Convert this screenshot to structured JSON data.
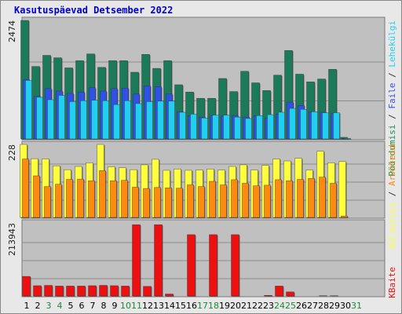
{
  "title": "Kasutuspäevad Detsember 2022",
  "colors": {
    "panel_bg": "#c0c0c0",
    "grid": "#8c8c8c",
    "kulastused": "#1a7a5a",
    "lehekulastused": "#3050e8",
    "failid": "#20d0f0",
    "poordumised_alt": "#1a8f50",
    "kulastajad": "#ffff40",
    "arvutid": "#ff8a10",
    "kbaite": "#ee1010",
    "weekday": "#000000",
    "weekend": "#1a8a3a"
  },
  "side_labels": {
    "top": [
      "Pöördumisi",
      "Faile",
      "Lehekülgi"
    ],
    "mid": [
      "Külastusi",
      "Arvuteid"
    ],
    "bottom": [
      "KBaite"
    ]
  },
  "chart_data": [
    {
      "type": "bar",
      "name": "top",
      "categories": [
        "1",
        "2",
        "3",
        "4",
        "5",
        "6",
        "7",
        "8",
        "9",
        "10",
        "11",
        "12",
        "13",
        "14",
        "15",
        "16",
        "17",
        "18",
        "19",
        "20",
        "21",
        "22",
        "23",
        "24",
        "25",
        "26",
        "27",
        "28",
        "29",
        "30",
        "31"
      ],
      "weekend_days": [
        3,
        4,
        10,
        11,
        17,
        18,
        24,
        25,
        31
      ],
      "ymax_label": "2474",
      "ylim": [
        0,
        2474
      ],
      "series": [
        {
          "key": "kulastused",
          "values": [
            2474,
            1520,
            1750,
            1700,
            1490,
            1640,
            1780,
            1500,
            1640,
            1640,
            1400,
            1770,
            1480,
            1640,
            1140,
            990,
            860,
            860,
            1270,
            1000,
            1420,
            1180,
            1020,
            1340,
            1850,
            1360,
            1200,
            1260,
            1460,
            50,
            0
          ]
        },
        {
          "key": "lehekulastused",
          "values": [
            1250,
            900,
            1060,
            1010,
            960,
            990,
            1080,
            1010,
            1060,
            1070,
            950,
            1120,
            1100,
            950,
            580,
            500,
            470,
            500,
            490,
            500,
            470,
            500,
            450,
            530,
            780,
            710,
            580,
            570,
            540,
            20,
            0
          ]
        },
        {
          "key": "failid",
          "values": [
            1230,
            880,
            830,
            920,
            790,
            810,
            820,
            810,
            730,
            810,
            750,
            790,
            800,
            800,
            570,
            530,
            450,
            510,
            510,
            470,
            440,
            500,
            520,
            570,
            650,
            630,
            580,
            560,
            560,
            30,
            0
          ]
        }
      ]
    },
    {
      "type": "bar",
      "name": "middle",
      "categories": [
        "1",
        "2",
        "3",
        "4",
        "5",
        "6",
        "7",
        "8",
        "9",
        "10",
        "11",
        "12",
        "13",
        "14",
        "15",
        "16",
        "17",
        "18",
        "19",
        "20",
        "21",
        "22",
        "23",
        "24",
        "25",
        "26",
        "27",
        "28",
        "29",
        "30",
        "31"
      ],
      "ymax_label": "228",
      "ylim": [
        0,
        228
      ],
      "series": [
        {
          "key": "kulastajad",
          "values": [
            228,
            184,
            183,
            162,
            150,
            160,
            171,
            228,
            159,
            156,
            150,
            165,
            182,
            148,
            152,
            148,
            149,
            152,
            149,
            160,
            165,
            149,
            163,
            183,
            177,
            185,
            149,
            207,
            171,
            175,
            0
          ]
        },
        {
          "key": "arvutid",
          "values": [
            183,
            131,
            98,
            105,
            120,
            121,
            116,
            147,
            116,
            117,
            96,
            92,
            95,
            94,
            93,
            103,
            98,
            114,
            103,
            119,
            108,
            100,
            102,
            119,
            116,
            120,
            123,
            127,
            108,
            7,
            0
          ]
        }
      ]
    },
    {
      "type": "bar",
      "name": "bottom",
      "categories": [
        "1",
        "2",
        "3",
        "4",
        "5",
        "6",
        "7",
        "8",
        "9",
        "10",
        "11",
        "12",
        "13",
        "14",
        "15",
        "16",
        "17",
        "18",
        "19",
        "20",
        "21",
        "22",
        "23",
        "24",
        "25",
        "26",
        "27",
        "28",
        "29",
        "30",
        "31"
      ],
      "ymax_label": "213943",
      "ylim": [
        0,
        213943
      ],
      "series": [
        {
          "key": "kbaite",
          "values": [
            59000,
            32000,
            33000,
            31000,
            31000,
            31000,
            32000,
            33000,
            32000,
            31000,
            209000,
            30000,
            209000,
            8000,
            2000,
            180000,
            2000,
            180000,
            2000,
            180000,
            2000,
            2000,
            4000,
            31000,
            14000,
            2000,
            2000,
            3000,
            3000,
            0,
            0
          ]
        }
      ]
    }
  ]
}
